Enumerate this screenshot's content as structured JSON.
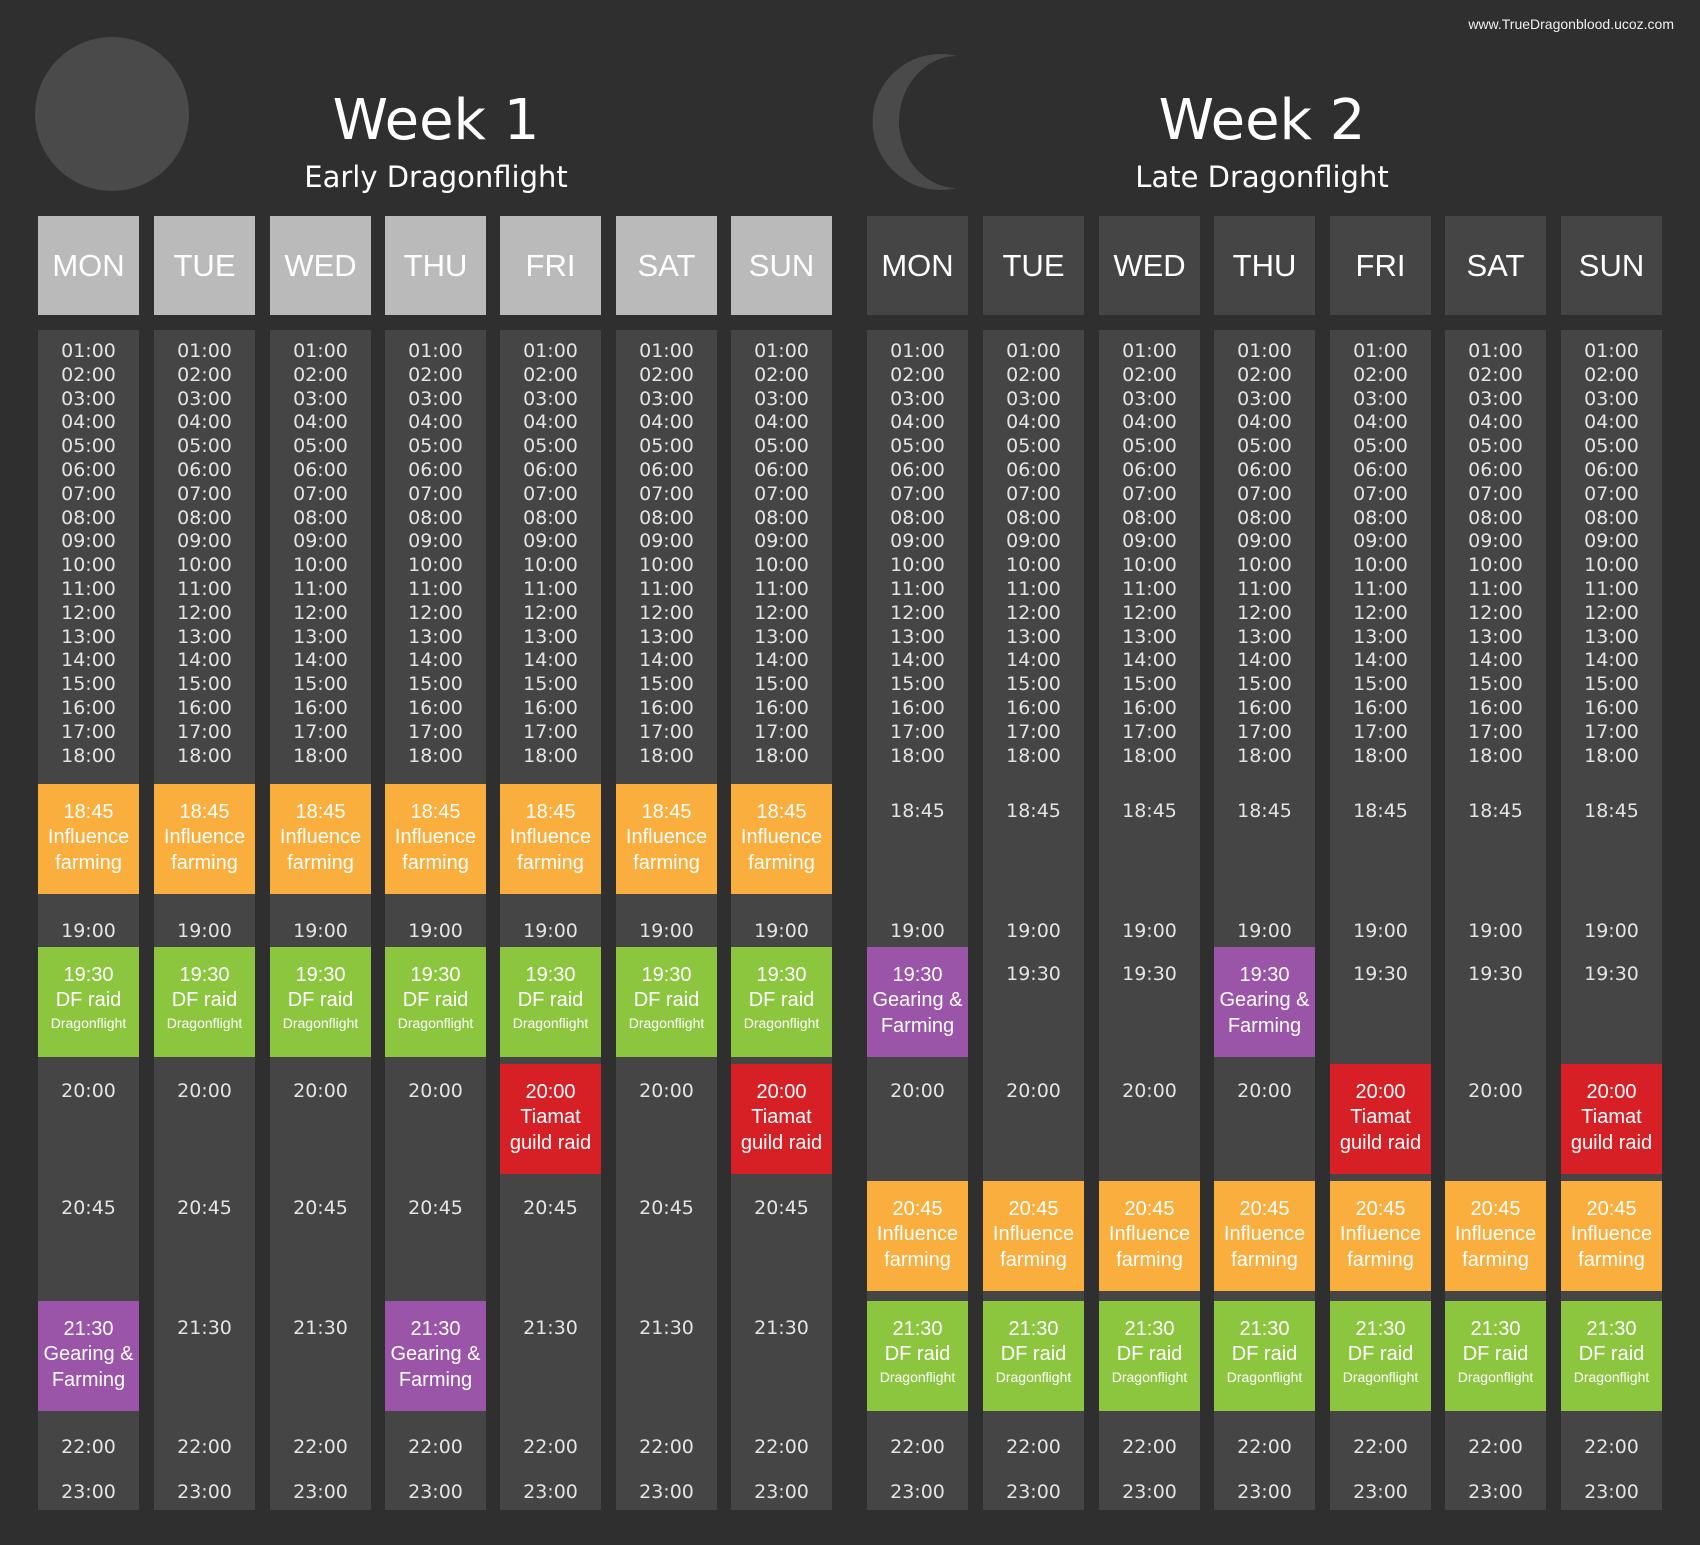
{
  "site_url": "www.TrueDragonblood.ucoz.com",
  "weeks": [
    {
      "title": "Week 1",
      "subtitle": "Early Dragonflight",
      "moon_icon": "full-moon-icon",
      "days": [
        "MON",
        "TUE",
        "WED",
        "THU",
        "FRI",
        "SAT",
        "SUN"
      ]
    },
    {
      "title": "Week 2",
      "subtitle": "Late Dragonflight",
      "moon_icon": "crescent-moon-icon",
      "days": [
        "MON",
        "TUE",
        "WED",
        "THU",
        "FRI",
        "SAT",
        "SUN"
      ]
    }
  ],
  "hours": [
    "01:00",
    "02:00",
    "03:00",
    "04:00",
    "05:00",
    "06:00",
    "07:00",
    "08:00",
    "09:00",
    "10:00",
    "11:00",
    "12:00",
    "13:00",
    "14:00",
    "15:00",
    "16:00",
    "17:00",
    "18:00"
  ],
  "slots": {
    "s1845": "18:45",
    "s1900": "19:00",
    "s1930": "19:30",
    "s2000": "20:00",
    "s2045": "20:45",
    "s2130": "21:30",
    "s2200": "22:00",
    "s2300": "23:00"
  },
  "event_labels": {
    "influence": [
      "Influence",
      "farming"
    ],
    "df_raid": [
      "DF raid",
      "Dragonflight"
    ],
    "gearing": [
      "Gearing &",
      "Farming"
    ],
    "tiamat": [
      "Tiamat",
      "guild raid"
    ]
  },
  "colors": {
    "influence": "#f9ae3d",
    "df_raid": "#8cc63f",
    "gearing": "#9a54a8",
    "tiamat": "#d71f26"
  },
  "schedule": {
    "week1": [
      {
        "s1845": "influence",
        "s1930": "df_raid",
        "s2000": null,
        "s2130": "gearing"
      },
      {
        "s1845": "influence",
        "s1930": "df_raid",
        "s2000": null,
        "s2130": null
      },
      {
        "s1845": "influence",
        "s1930": "df_raid",
        "s2000": null,
        "s2130": null
      },
      {
        "s1845": "influence",
        "s1930": "df_raid",
        "s2000": null,
        "s2130": "gearing"
      },
      {
        "s1845": "influence",
        "s1930": "df_raid",
        "s2000": "tiamat",
        "s2130": null
      },
      {
        "s1845": "influence",
        "s1930": "df_raid",
        "s2000": null,
        "s2130": null
      },
      {
        "s1845": "influence",
        "s1930": "df_raid",
        "s2000": "tiamat",
        "s2130": null
      }
    ],
    "week2": [
      {
        "s1930": "gearing",
        "s2000": null,
        "s2045": "influence",
        "s2130": "df_raid"
      },
      {
        "s1930": null,
        "s2000": null,
        "s2045": "influence",
        "s2130": "df_raid"
      },
      {
        "s1930": null,
        "s2000": null,
        "s2045": "influence",
        "s2130": "df_raid"
      },
      {
        "s1930": "gearing",
        "s2000": null,
        "s2045": "influence",
        "s2130": "df_raid"
      },
      {
        "s1930": null,
        "s2000": "tiamat",
        "s2045": "influence",
        "s2130": "df_raid"
      },
      {
        "s1930": null,
        "s2000": null,
        "s2045": "influence",
        "s2130": "df_raid"
      },
      {
        "s1930": null,
        "s2000": "tiamat",
        "s2045": "influence",
        "s2130": "df_raid"
      }
    ]
  }
}
